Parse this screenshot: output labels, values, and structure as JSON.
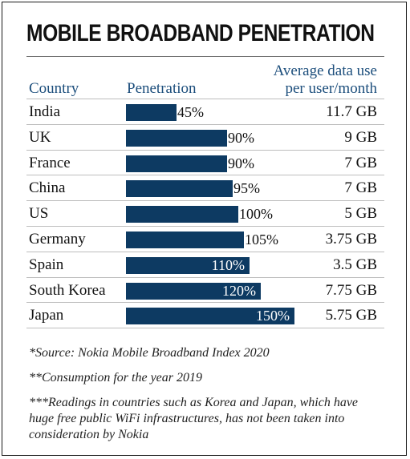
{
  "title": "MOBILE BROADBAND PENETRATION",
  "headers": {
    "country": "Country",
    "penetration": "Penetration",
    "avg_line1": "Average data use",
    "avg_line2": "per user/month"
  },
  "colors": {
    "bar": "#0d3a62",
    "header": "#1c4e7c"
  },
  "chart_data": {
    "type": "bar",
    "orientation": "horizontal",
    "title": "MOBILE BROADBAND PENETRATION",
    "categories": [
      "India",
      "UK",
      "France",
      "China",
      "US",
      "Germany",
      "Spain",
      "South Korea",
      "Japan"
    ],
    "series": [
      {
        "name": "Penetration",
        "values": [
          45,
          90,
          90,
          95,
          100,
          105,
          110,
          120,
          150
        ]
      }
    ],
    "labels": [
      "45%",
      "90%",
      "90%",
      "95%",
      "100%",
      "105%",
      "110%",
      "120%",
      "150%"
    ],
    "avg_data_use": [
      "11.7 GB",
      "9 GB",
      "7 GB",
      "7 GB",
      "5 GB",
      "3.75 GB",
      "3.5 GB",
      "7.75 GB",
      "5.75 GB"
    ],
    "xlim": [
      0,
      150
    ],
    "grid": false
  },
  "notes": [
    "*Source: Nokia Mobile Broadband Index 2020",
    "**Consumption for the year 2019",
    "***Readings in countries such as Korea and Japan, which have huge free public WiFi infrastructures, has not been taken into consideration by Nokia"
  ]
}
